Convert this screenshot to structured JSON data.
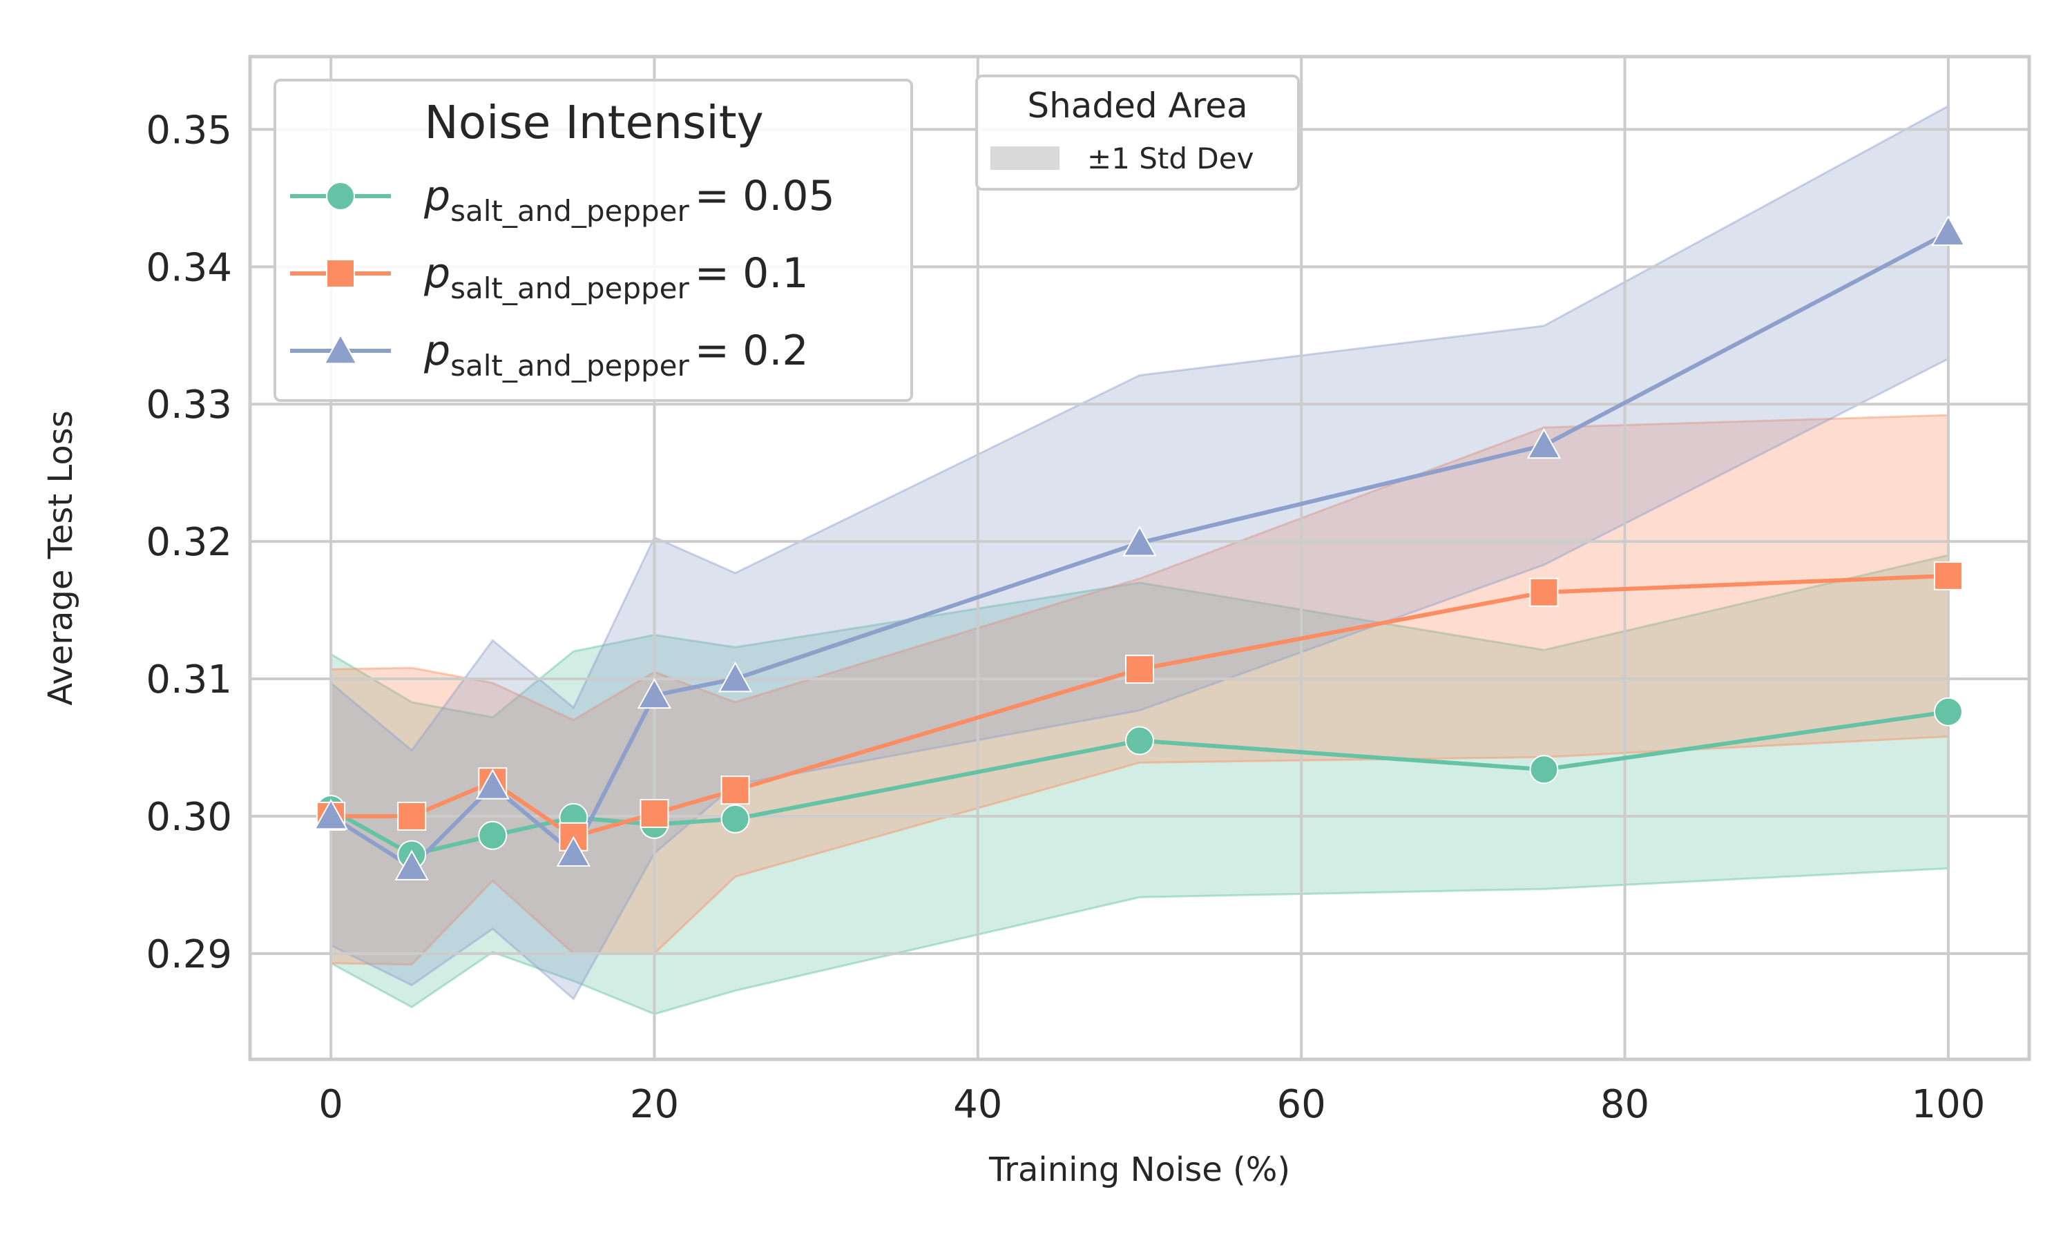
{
  "chart_data": {
    "type": "line",
    "xlabel": "Training Noise (%)",
    "ylabel": "Average Test Loss",
    "xlim": [
      -5,
      105
    ],
    "ylim": [
      0.2823,
      0.3553
    ],
    "x_ticks": [
      0,
      20,
      40,
      60,
      80,
      100
    ],
    "x_tick_labels": [
      "0",
      "20",
      "40",
      "60",
      "80",
      "100"
    ],
    "y_ticks": [
      0.29,
      0.3,
      0.31,
      0.32,
      0.33,
      0.34,
      0.35
    ],
    "y_tick_labels": [
      "0.29",
      "0.30",
      "0.31",
      "0.32",
      "0.33",
      "0.34",
      "0.35"
    ],
    "grid": true,
    "x": [
      0,
      5,
      10,
      15,
      20,
      25,
      50,
      75,
      100
    ],
    "series": [
      {
        "name_main": "p",
        "name_sub": "salt_and_pepper",
        "name_value": "= 0.05",
        "marker": "circle",
        "color": "#66c2a5",
        "values": [
          0.3005,
          0.2972,
          0.2986,
          0.2999,
          0.2994,
          0.2998,
          0.3055,
          0.3034,
          0.3076
        ],
        "upper": [
          0.3118,
          0.3083,
          0.3072,
          0.312,
          0.3132,
          0.3123,
          0.317,
          0.3121,
          0.319
        ],
        "lower": [
          0.2893,
          0.2861,
          0.2901,
          0.288,
          0.2856,
          0.2873,
          0.2941,
          0.2947,
          0.2962
        ]
      },
      {
        "name_main": "p",
        "name_sub": "salt_and_pepper",
        "name_value": "= 0.1",
        "marker": "square",
        "color": "#fc8d62",
        "values": [
          0.3,
          0.3,
          0.3025,
          0.2985,
          0.3002,
          0.3019,
          0.3107,
          0.3163,
          0.3175
        ],
        "upper": [
          0.3107,
          0.3108,
          0.3097,
          0.307,
          0.3105,
          0.3083,
          0.3173,
          0.3283,
          0.3292
        ],
        "lower": [
          0.2893,
          0.2892,
          0.2953,
          0.29,
          0.29,
          0.2956,
          0.3039,
          0.3043,
          0.3058
        ]
      },
      {
        "name_main": "p",
        "name_sub": "salt_and_pepper",
        "name_value": "= 0.2",
        "marker": "triangle",
        "color": "#8da0cb",
        "values": [
          0.3,
          0.2963,
          0.3022,
          0.2973,
          0.3088,
          0.31,
          0.3199,
          0.327,
          0.3425
        ],
        "upper": [
          0.3097,
          0.3048,
          0.3128,
          0.3079,
          0.3203,
          0.3177,
          0.3321,
          0.3357,
          0.3517
        ],
        "lower": [
          0.2906,
          0.2877,
          0.2918,
          0.2867,
          0.2973,
          0.3023,
          0.3077,
          0.3183,
          0.3333
        ]
      }
    ],
    "legend": {
      "title": "Noise Intensity",
      "placement": "top-left"
    },
    "shade_legend": {
      "title": "Shaded Area",
      "entry": "±1 Std Dev",
      "swatch_color": "#d9d9d9",
      "placement": "upper-center"
    }
  }
}
